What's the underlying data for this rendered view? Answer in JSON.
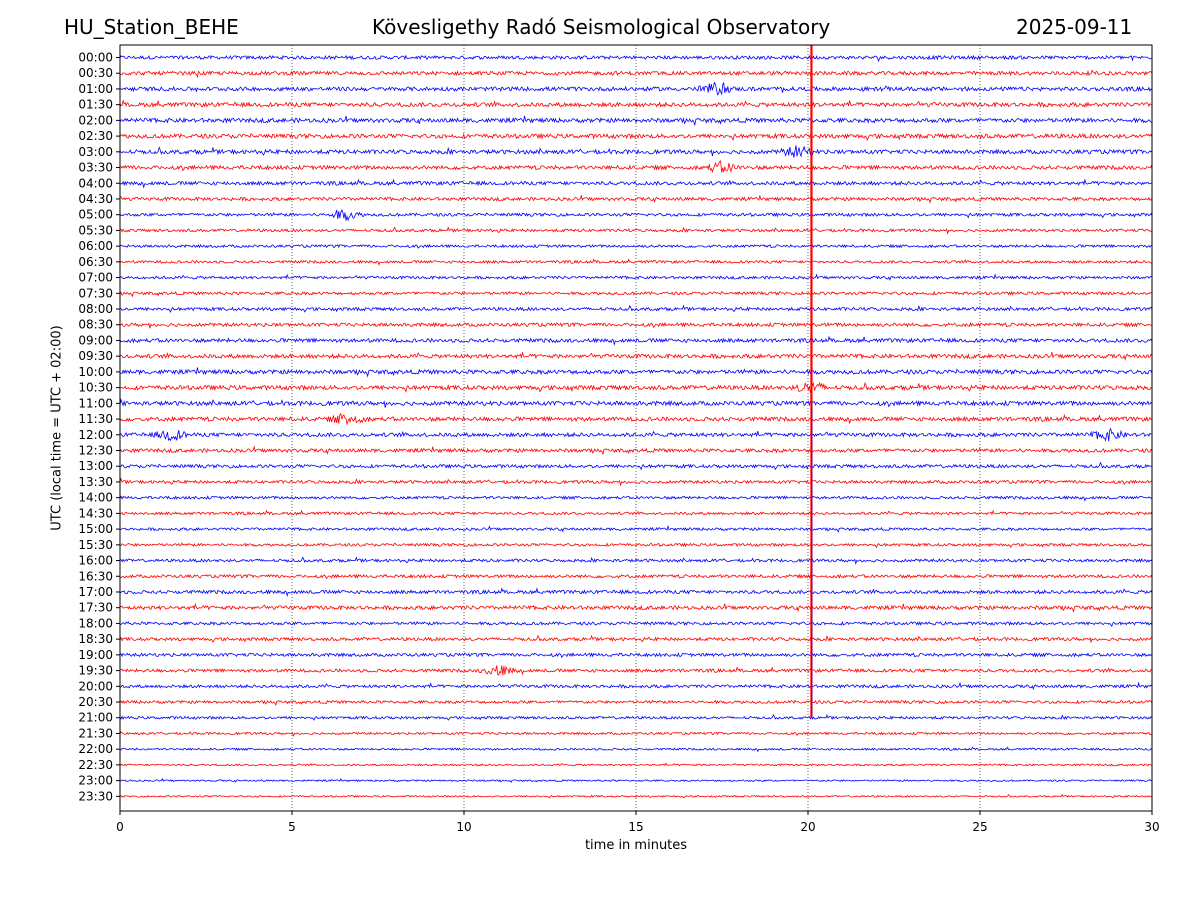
{
  "header": {
    "station": "HU_Station_BEHE",
    "observatory": "Kövesligethy Radó Seismological Observatory",
    "date": "2025-09-11"
  },
  "chart_data": {
    "type": "line",
    "title": "Kövesligethy Radó Seismological Observatory",
    "xlabel": "time in minutes",
    "ylabel": "UTC (local time = UTC + 02:00)",
    "xlim": [
      0,
      30
    ],
    "xticks": [
      0,
      5,
      10,
      15,
      20,
      25,
      30
    ],
    "grid": "vertical dotted",
    "row_labels": [
      "00:00",
      "00:30",
      "01:00",
      "01:30",
      "02:00",
      "02:30",
      "03:00",
      "03:30",
      "04:00",
      "04:30",
      "05:00",
      "05:30",
      "06:00",
      "06:30",
      "07:00",
      "07:30",
      "08:00",
      "08:30",
      "09:00",
      "09:30",
      "10:00",
      "10:30",
      "11:00",
      "11:30",
      "12:00",
      "12:30",
      "13:00",
      "13:30",
      "14:00",
      "14:30",
      "15:00",
      "15:30",
      "16:00",
      "16:30",
      "17:00",
      "17:30",
      "18:00",
      "18:30",
      "19:00",
      "19:30",
      "20:00",
      "20:30",
      "21:00",
      "21:30",
      "22:00",
      "22:30",
      "23:00",
      "23:30"
    ],
    "colors": {
      "even_rows": "#0000ff",
      "odd_rows": "#ff0000"
    },
    "events": [
      {
        "row": "01:00",
        "minute": 17.3
      },
      {
        "row": "03:00",
        "minute": 19.7
      },
      {
        "row": "03:30",
        "minute": 17.5
      },
      {
        "row": "05:00",
        "minute": 6.5
      },
      {
        "row": "11:30",
        "minute": 6.6
      },
      {
        "row": "12:00",
        "minute": 1.5
      },
      {
        "row": "12:00",
        "minute": 28.7
      },
      {
        "row": "10:30",
        "minute": 20.1
      },
      {
        "row": "19:30",
        "minute": 11.0
      }
    ],
    "vertical_event": {
      "minute": 20.1,
      "from_row": "00:00",
      "to_row": "21:00"
    }
  }
}
